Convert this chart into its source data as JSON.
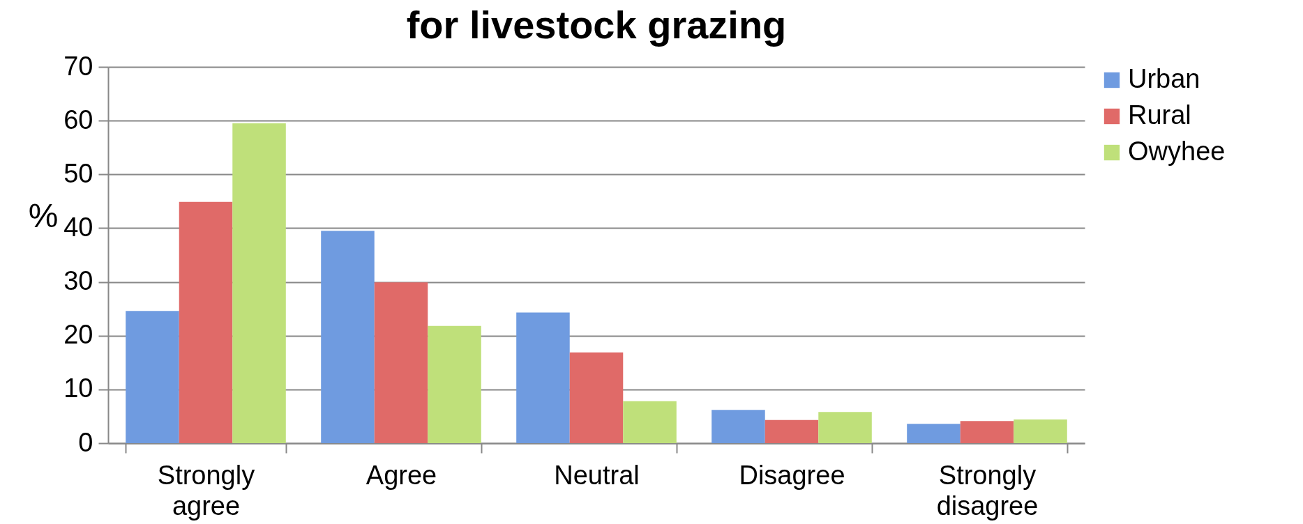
{
  "chart_data": {
    "type": "bar",
    "title": "for livestock grazing",
    "ylabel": "%",
    "categories": [
      "Strongly agree",
      "Agree",
      "Neutral",
      "Disagree",
      "Strongly disagree"
    ],
    "series": [
      {
        "name": "Urban",
        "color": "#6f9be0",
        "values": [
          24.6,
          39.5,
          24.3,
          6.2,
          3.6
        ]
      },
      {
        "name": "Rural",
        "color": "#e06a68",
        "values": [
          44.9,
          29.9,
          16.9,
          4.3,
          4.1
        ]
      },
      {
        "name": "Owyhee",
        "color": "#bfe07a",
        "values": [
          59.5,
          21.8,
          7.8,
          5.8,
          4.4
        ]
      }
    ],
    "ylim": [
      0,
      70
    ],
    "yticks": [
      0,
      10,
      20,
      30,
      40,
      50,
      60,
      70
    ],
    "grid": "y",
    "legend": "right"
  }
}
